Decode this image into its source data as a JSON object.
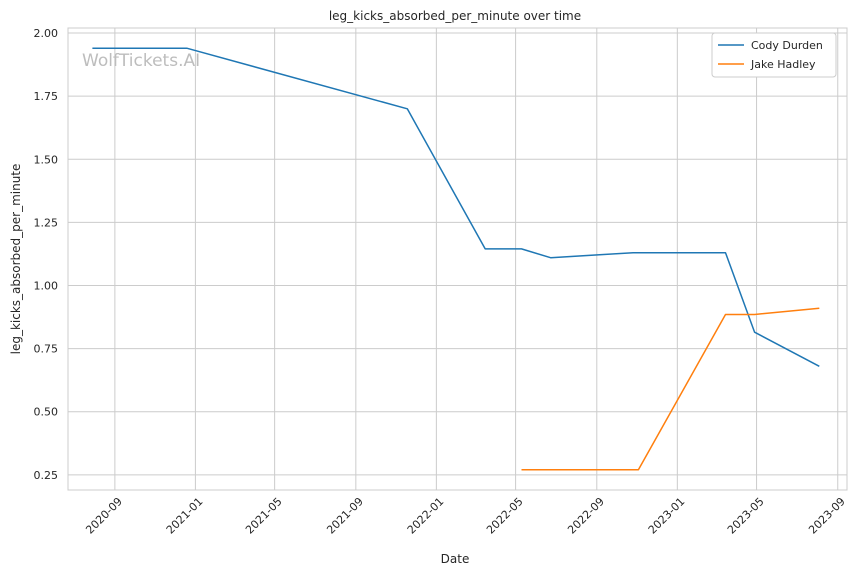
{
  "chart_data": {
    "type": "line",
    "title": "leg_kicks_absorbed_per_minute over time",
    "xlabel": "Date",
    "ylabel": "leg_kicks_absorbed_per_minute",
    "watermark": "WolfTickets.AI",
    "ylim": [
      0.19,
      2.02
    ],
    "xlim": [
      "2020-06-22",
      "2023-09-15"
    ],
    "yticks": [
      0.25,
      0.5,
      0.75,
      1.0,
      1.25,
      1.5,
      1.75,
      2.0
    ],
    "ytick_labels": [
      "0.25",
      "0.50",
      "0.75",
      "1.00",
      "1.25",
      "1.50",
      "1.75",
      "2.00"
    ],
    "xticks": [
      "2020-09-01",
      "2021-01-01",
      "2021-05-01",
      "2021-09-01",
      "2022-01-01",
      "2022-05-01",
      "2022-09-01",
      "2023-01-01",
      "2023-05-01",
      "2023-09-01"
    ],
    "xtick_labels": [
      "2020-09",
      "2021-01",
      "2021-05",
      "2021-09",
      "2022-01",
      "2022-05",
      "2022-09",
      "2023-01",
      "2023-05",
      "2023-09"
    ],
    "grid": true,
    "legend_position": "top-right",
    "series": [
      {
        "name": "Cody Durden",
        "color": "#1f77b4",
        "x": [
          "2020-07-29",
          "2020-12-19",
          "2021-11-18",
          "2022-03-16",
          "2022-05-10",
          "2022-06-23",
          "2022-10-26",
          "2023-03-15",
          "2023-04-28",
          "2023-08-04"
        ],
        "y": [
          1.94,
          1.94,
          1.7,
          1.145,
          1.145,
          1.11,
          1.13,
          1.13,
          0.815,
          0.68
        ]
      },
      {
        "name": "Jake Hadley",
        "color": "#ff7f0e",
        "x": [
          "2022-05-10",
          "2022-11-03",
          "2023-03-15",
          "2023-04-28",
          "2023-08-04"
        ],
        "y": [
          0.27,
          0.27,
          0.885,
          0.885,
          0.91
        ]
      }
    ]
  }
}
